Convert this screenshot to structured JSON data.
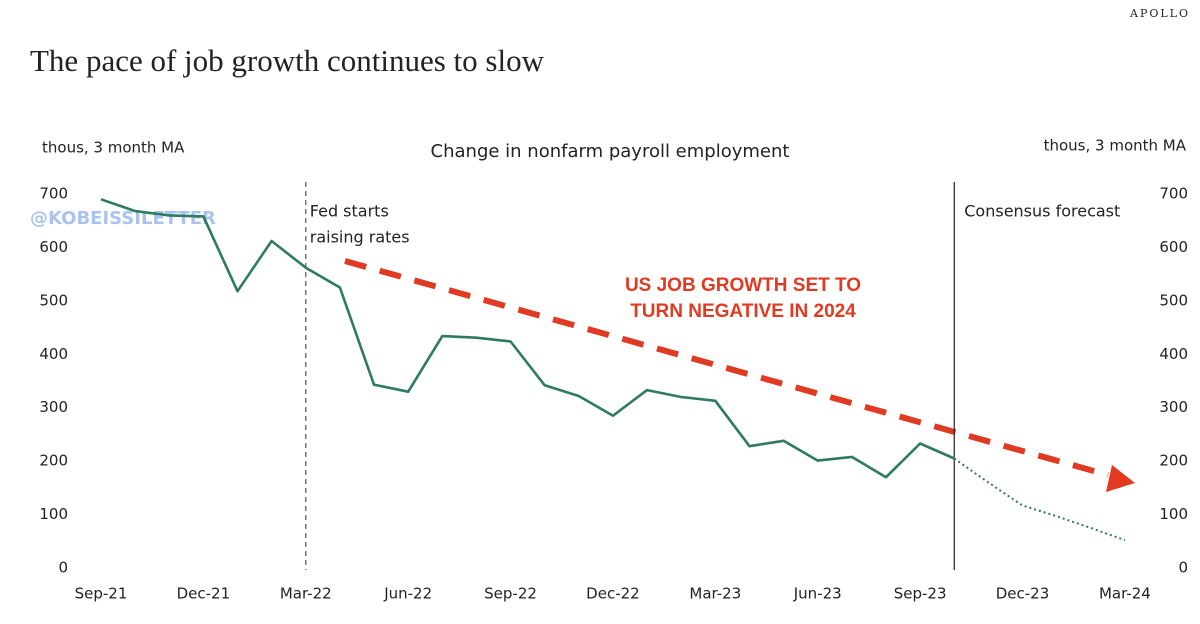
{
  "brand": "APOLLO",
  "headline": "The pace of job growth continues to slow",
  "watermark": "@KOBEISSILETTER",
  "chart_data": {
    "type": "line",
    "title": "Change in nonfarm payroll employment",
    "y_label": "thous, 3 month MA",
    "y2_label": "thous, 3 month MA",
    "categories": [
      "Sep-21",
      null,
      null,
      "Dec-21",
      null,
      null,
      "Mar-22",
      null,
      null,
      "Jun-22",
      null,
      null,
      "Sep-22",
      null,
      null,
      "Dec-22",
      null,
      null,
      "Mar-23",
      null,
      null,
      "Jun-23",
      null,
      null,
      "Sep-23",
      null,
      null,
      "Dec-23",
      null,
      null,
      "Mar-24"
    ],
    "series": [
      {
        "color": "#2e7a62",
        "style": "solid",
        "values": [
          690,
          668,
          660,
          658,
          518,
          612,
          562,
          525,
          343,
          330,
          434,
          431,
          424,
          342,
          322,
          285,
          333,
          320,
          313,
          228,
          238,
          201,
          208,
          170,
          233,
          205,
          null,
          null,
          null,
          null,
          null
        ]
      },
      {
        "color": "#2e7a62",
        "style": "dotted",
        "values": [
          null,
          null,
          null,
          null,
          null,
          null,
          null,
          null,
          null,
          null,
          null,
          null,
          null,
          null,
          null,
          null,
          null,
          null,
          null,
          null,
          null,
          null,
          null,
          null,
          null,
          205,
          160,
          117,
          97,
          75,
          52
        ]
      }
    ],
    "ylim": [
      0,
      700
    ],
    "yticks": [
      0,
      100,
      200,
      300,
      400,
      500,
      600,
      700
    ],
    "y2lim": [
      0,
      700
    ],
    "y2ticks": [
      0,
      100,
      200,
      300,
      400,
      500,
      600,
      700
    ],
    "vlines": [
      {
        "at": 6,
        "style": "dashed",
        "label": [
          "Fed starts",
          "raising rates"
        ]
      },
      {
        "at": 25,
        "style": "solid",
        "label": [
          "Consensus forecast"
        ]
      }
    ],
    "callout": {
      "color": "#e03a22",
      "lines": [
        "US JOB GROWTH SET TO",
        "TURN NEGATIVE IN 2024"
      ]
    }
  }
}
